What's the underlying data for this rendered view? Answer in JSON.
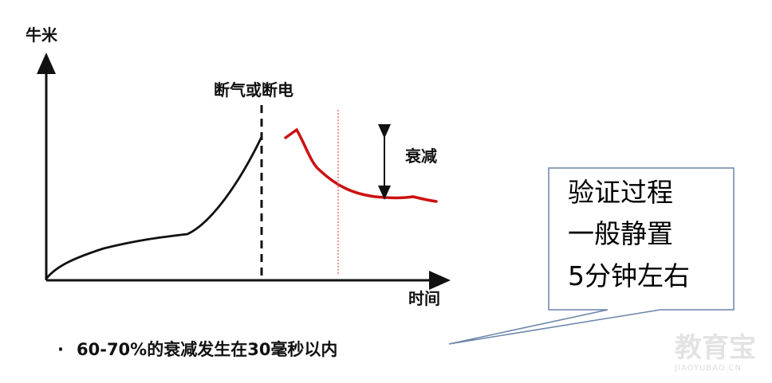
{
  "axes": {
    "y_label": "牛米",
    "x_label": "时间"
  },
  "annotations": {
    "cutoff_label": "断气或断电",
    "decay_label": "衰减"
  },
  "bullet": {
    "marker": "·",
    "text": "60-70%的衰减发生在30毫秒以内"
  },
  "callout": {
    "lines": [
      "验证过程",
      "一般静置",
      "5分钟左右"
    ]
  },
  "watermark": {
    "main": "教育宝",
    "sub": "JIAOYUBAO.CN"
  },
  "colors": {
    "black_curve": "#111111",
    "red_curve": "#cc1111",
    "red_dotted_line": "#e05555",
    "callout_border": "#6b84a8"
  }
}
